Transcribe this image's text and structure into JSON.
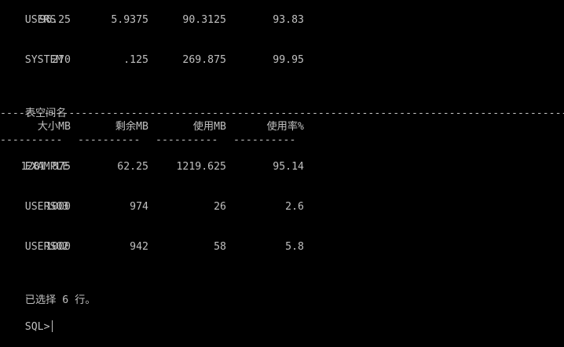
{
  "rows_top": [
    {
      "name": "USERS",
      "size": "96.25",
      "free": "5.9375",
      "used": "90.3125",
      "pct": "93.83"
    },
    {
      "name": "SYSTEM",
      "size": "270",
      "free": ".125",
      "used": "269.875",
      "pct": "99.95"
    }
  ],
  "header": {
    "title": "表空间名",
    "long_rule": "----------------------------------------------------------------------------------------------------------------",
    "col_size": "大小MB",
    "col_free": "剩余MB",
    "col_used": "使用MB",
    "col_pct": "使用率%",
    "col_rule": "----------"
  },
  "rows_bottom": [
    {
      "name": "EXAMPLE",
      "size": "1281.875",
      "free": "62.25",
      "used": "1219.625",
      "pct": "95.14"
    },
    {
      "name": "USERS03",
      "size": "1000",
      "free": "974",
      "used": "26",
      "pct": "2.6"
    },
    {
      "name": "USERS02",
      "size": "1000",
      "free": "942",
      "used": "58",
      "pct": "5.8"
    }
  ],
  "footer": {
    "rows_selected": "已选择 6 行。",
    "prompt": "SQL>"
  },
  "colors": {
    "background": "#000000",
    "text": "#c0c0c0"
  }
}
